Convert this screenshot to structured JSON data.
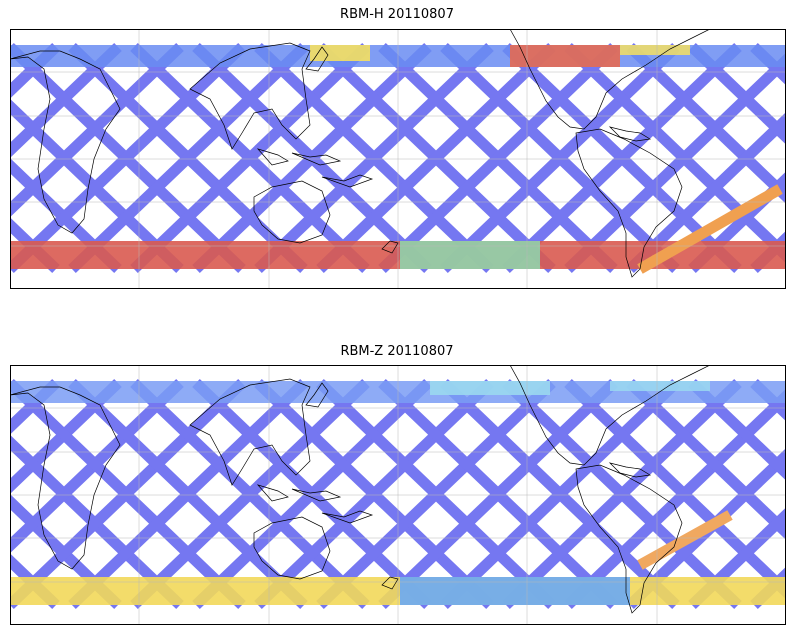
{
  "panels": [
    {
      "title": "RBM-H 20110807",
      "colormap": "jet",
      "high_latitude_intensity": "high",
      "south_band_color": "#d95a50",
      "north_band_color": "#e46a52",
      "track_color": "#6a6cf0"
    },
    {
      "title": "RBM-Z 20110807",
      "colormap": "jet",
      "high_latitude_intensity": "moderate",
      "south_band_color": "#f2d85a",
      "north_band_color": "#9ad8f0",
      "track_color": "#6a6cf0"
    }
  ],
  "map": {
    "projection": "cylindrical",
    "grid": true,
    "coastlines": true
  },
  "colors": {
    "coastline": "#000000",
    "gridline": "#b8b8b8",
    "frame": "#000000"
  }
}
